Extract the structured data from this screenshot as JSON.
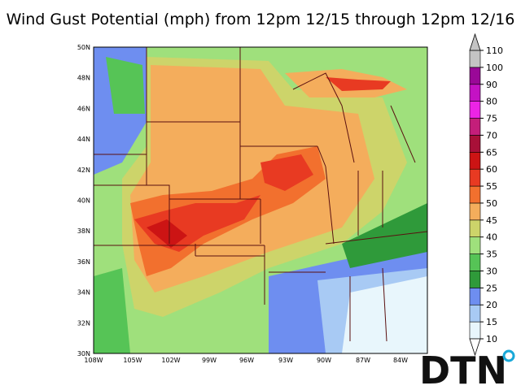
{
  "title": "Wind Gust Potential (mph) from 12pm 12/15 through 12pm 12/16",
  "map": {
    "lat_labels": [
      "50N",
      "48N",
      "46N",
      "44N",
      "42N",
      "40N",
      "38N",
      "36N",
      "34N",
      "32N",
      "30N"
    ],
    "lon_labels": [
      "108W",
      "105W",
      "102W",
      "99W",
      "96W",
      "93W",
      "90W",
      "87W",
      "84W"
    ]
  },
  "colorbar": {
    "levels": [
      10,
      15,
      20,
      25,
      30,
      35,
      40,
      45,
      50,
      55,
      60,
      65,
      70,
      75,
      80,
      90,
      100,
      110
    ],
    "colors": [
      "#e8f6fc",
      "#a8caf4",
      "#6e8ef0",
      "#2f9a3a",
      "#56c456",
      "#9fe07c",
      "#cdd46a",
      "#f4ad5c",
      "#f2702e",
      "#e83a22",
      "#cc1414",
      "#a81038",
      "#c41e7a",
      "#ec24e6",
      "#c412c4",
      "#9a0898",
      "#c4c4c4"
    ]
  },
  "logo": "DTN"
}
